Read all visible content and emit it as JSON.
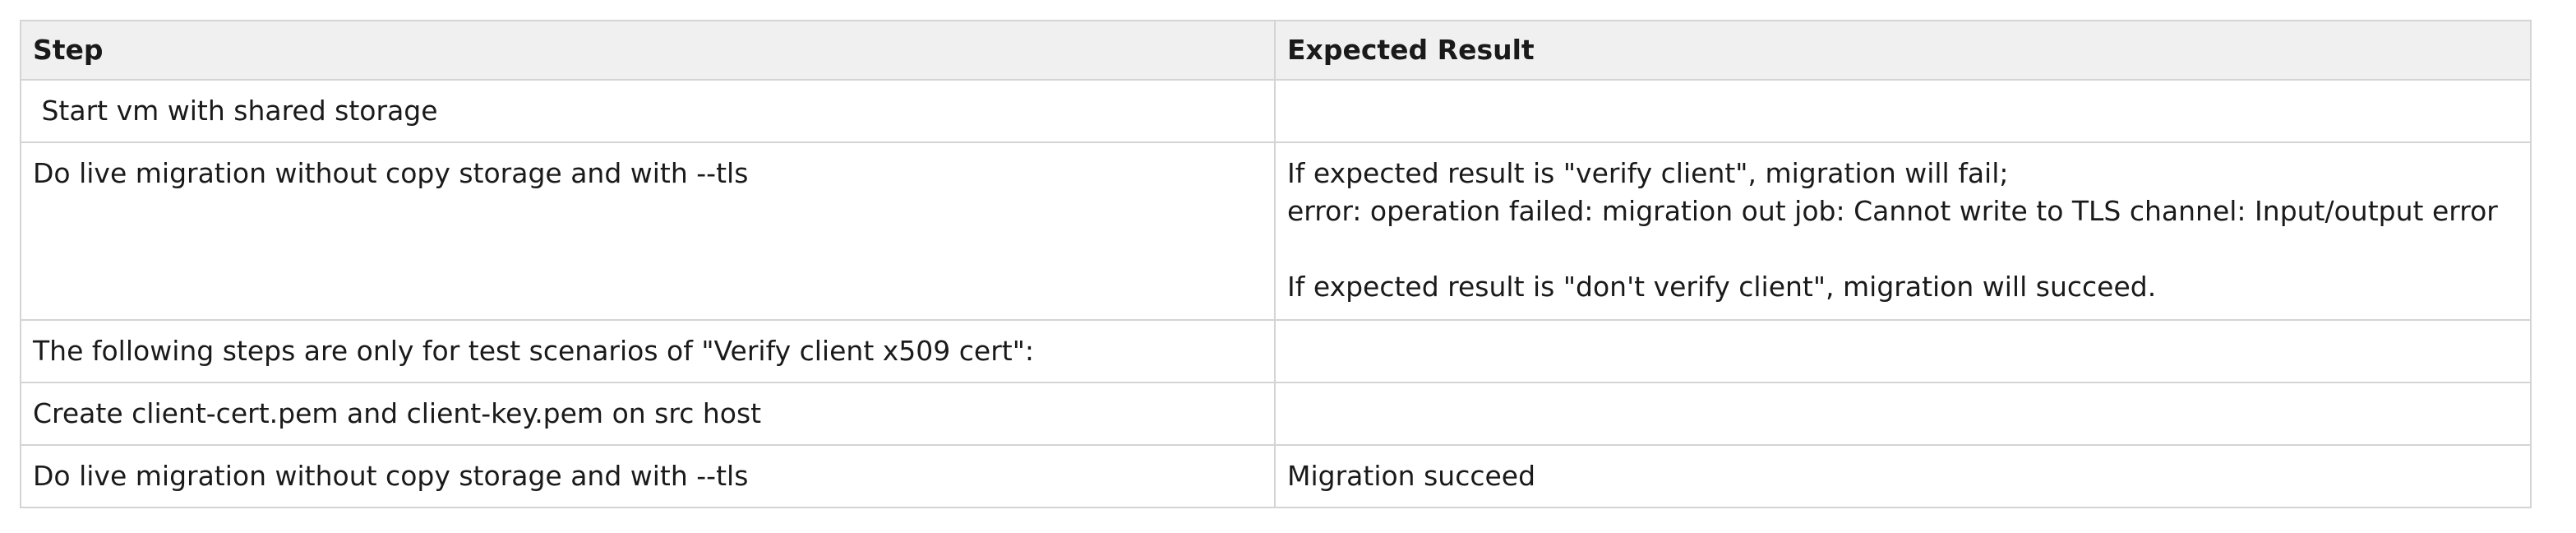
{
  "table": {
    "headers": {
      "step": "Step",
      "expected": "Expected Result"
    },
    "rows": [
      {
        "step": " Start vm with shared storage",
        "expected_lines": []
      },
      {
        "step": "Do live migration without copy storage and with --tls",
        "expected_lines": [
          "If expected result is \"verify client\", migration will fail;",
          "error: operation failed: migration out job: Cannot write to TLS channel: Input/output error",
          "",
          "If expected result is \"don't verify client\", migration will succeed."
        ]
      },
      {
        "step": "The following steps are only for test scenarios of \"Verify client x509 cert\":",
        "expected_lines": []
      },
      {
        "step": "Create client-cert.pem and client-key.pem on src host",
        "expected_lines": []
      },
      {
        "step": "Do live migration without copy storage and with --tls",
        "expected_lines": [
          "Migration succeed"
        ]
      }
    ]
  }
}
